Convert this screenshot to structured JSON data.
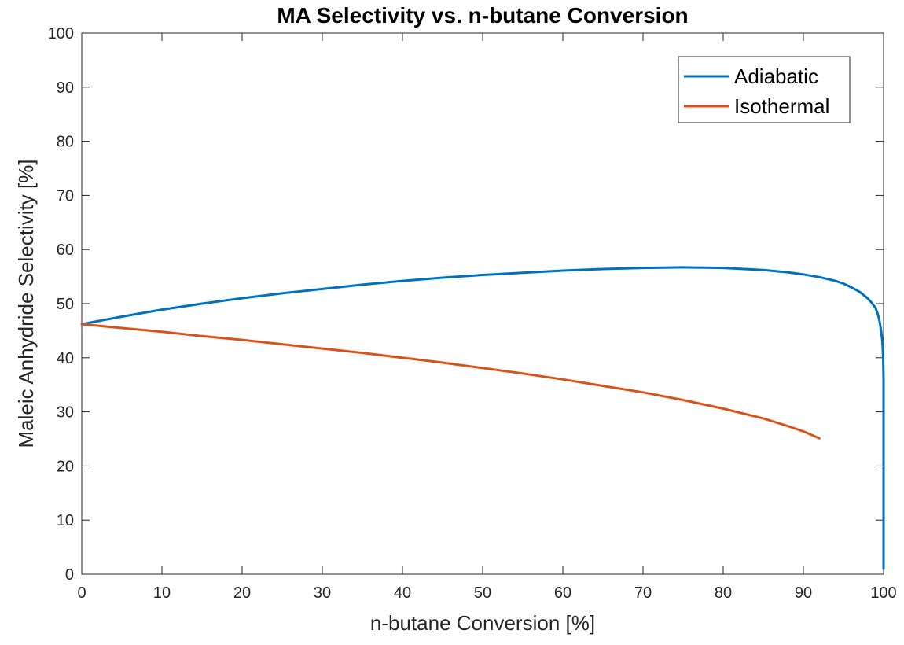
{
  "chart_data": {
    "type": "line",
    "title": "MA Selectivity vs. n-butane Conversion",
    "xlabel": "n-butane Conversion [%]",
    "ylabel": "Maleic Anhydride Selectivity [%]",
    "xlim": [
      0,
      100
    ],
    "ylim": [
      0,
      100
    ],
    "xticks": [
      0,
      10,
      20,
      30,
      40,
      50,
      60,
      70,
      80,
      90,
      100
    ],
    "yticks": [
      0,
      10,
      20,
      30,
      40,
      50,
      60,
      70,
      80,
      90,
      100
    ],
    "grid": false,
    "legend_location": "top-right",
    "series": [
      {
        "name": "Adiabatic",
        "color": "#0072BD",
        "x": [
          0,
          5,
          10,
          15,
          20,
          25,
          30,
          35,
          40,
          45,
          50,
          55,
          60,
          65,
          70,
          75,
          80,
          85,
          88,
          90,
          92,
          94,
          95,
          96,
          97,
          98,
          98.5,
          99,
          99.3,
          99.5,
          99.7,
          99.85,
          99.95,
          100,
          100,
          100,
          100
        ],
        "y": [
          46.2,
          47.6,
          48.9,
          50.0,
          51.0,
          51.9,
          52.7,
          53.5,
          54.2,
          54.8,
          55.3,
          55.7,
          56.1,
          56.4,
          56.6,
          56.7,
          56.6,
          56.2,
          55.8,
          55.4,
          54.9,
          54.2,
          53.7,
          53.0,
          52.2,
          51.0,
          50.2,
          49.2,
          48.0,
          46.8,
          45.0,
          43.0,
          40.0,
          36.0,
          20.0,
          8.0,
          1.0
        ]
      },
      {
        "name": "Isothermal",
        "color": "#D95319",
        "x": [
          0,
          5,
          10,
          15,
          20,
          25,
          30,
          35,
          40,
          45,
          50,
          55,
          60,
          65,
          70,
          75,
          80,
          85,
          88,
          90,
          92
        ],
        "y": [
          46.2,
          45.5,
          44.8,
          44.0,
          43.3,
          42.5,
          41.7,
          40.9,
          40.0,
          39.1,
          38.1,
          37.1,
          36.0,
          34.8,
          33.6,
          32.2,
          30.6,
          28.8,
          27.4,
          26.4,
          25.1
        ]
      }
    ]
  }
}
